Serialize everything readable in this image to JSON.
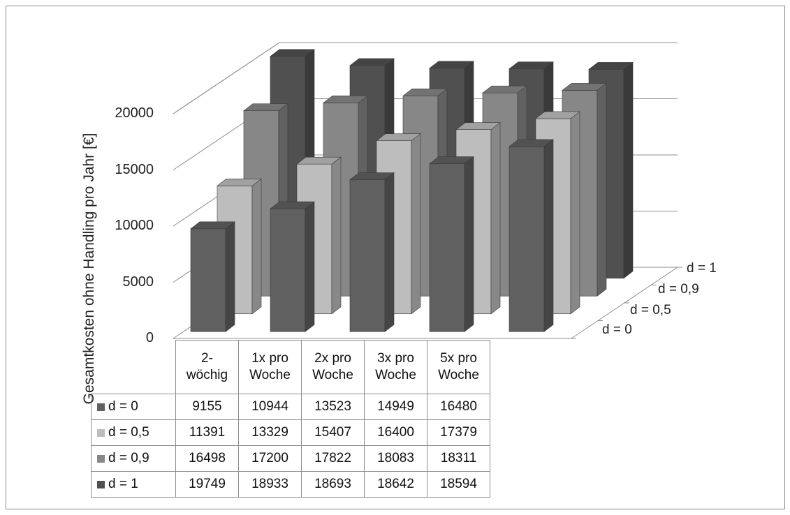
{
  "chart_data": {
    "type": "bar",
    "subtype": "3d-clustered-with-data-table",
    "ylabel": "Gesamtkosten ohne Handling pro Jahr [€]",
    "ylim": [
      0,
      20000
    ],
    "yticks": [
      "0",
      "5000",
      "10000",
      "15000",
      "20000"
    ],
    "categories": [
      [
        "2-",
        "wöchig"
      ],
      [
        "1x pro",
        "Woche"
      ],
      [
        "2x pro",
        "Woche"
      ],
      [
        "3x pro",
        "Woche"
      ],
      [
        "5x pro",
        "Woche"
      ]
    ],
    "series": [
      {
        "name": "d = 0",
        "color": "#606060",
        "values": [
          9155,
          10944,
          13523,
          14949,
          16480
        ]
      },
      {
        "name": "d = 0,5",
        "color": "#bdbdbd",
        "values": [
          11391,
          13329,
          15407,
          16400,
          17379
        ]
      },
      {
        "name": "d = 0,9",
        "color": "#878787",
        "values": [
          16498,
          17200,
          17822,
          18083,
          18311
        ]
      },
      {
        "name": "d = 1",
        "color": "#505050",
        "values": [
          19749,
          18933,
          18693,
          18642,
          18594
        ]
      }
    ],
    "depth_labels": [
      "d = 0",
      "d = 0,5",
      "d = 0,9",
      "d = 1"
    ],
    "grid": true,
    "legend": "data-table"
  }
}
